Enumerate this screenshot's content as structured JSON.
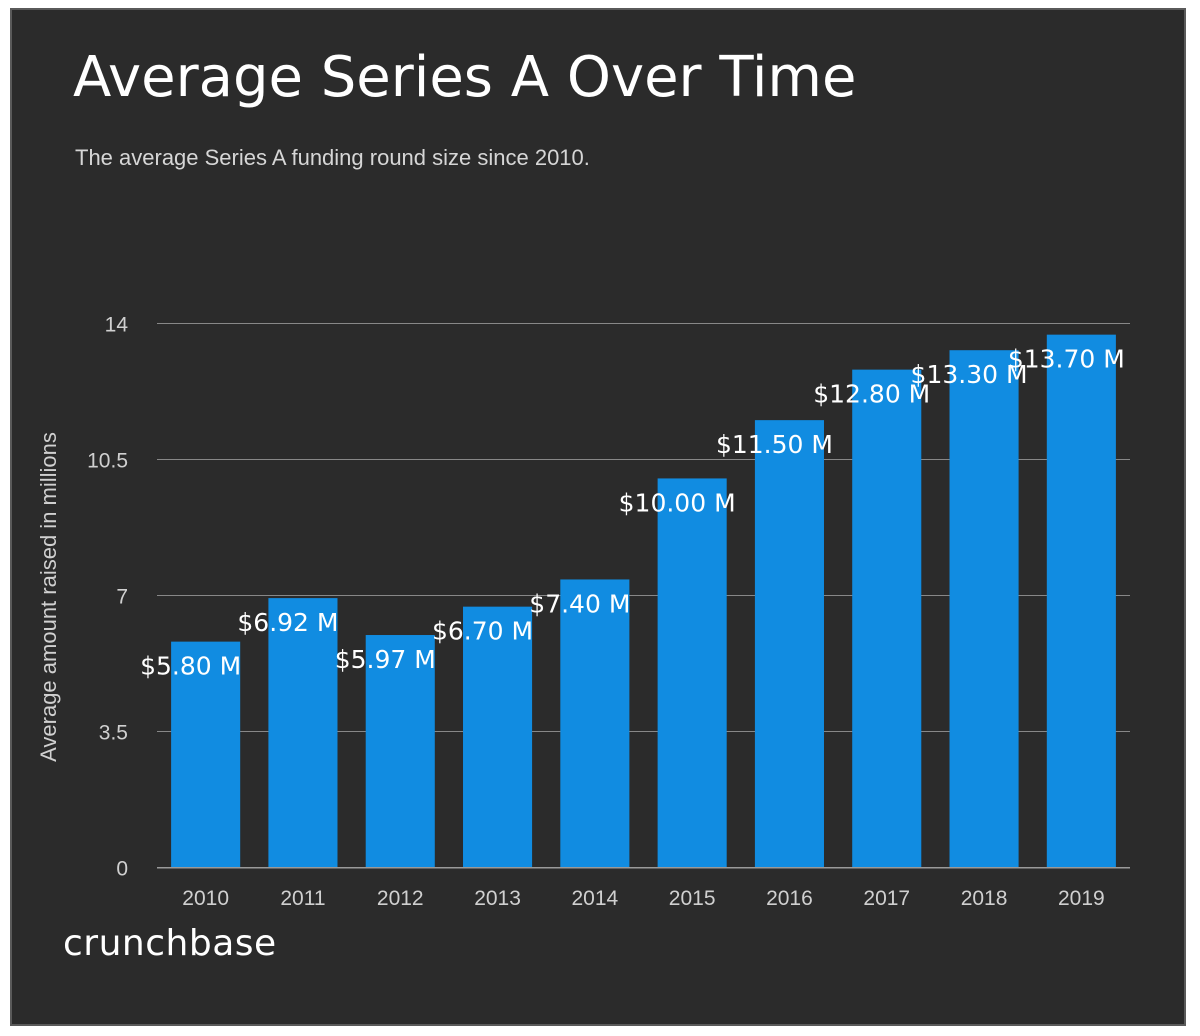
{
  "header": {
    "title": "Average Series A Over Time",
    "subtitle": "The average Series A funding round size since 2010."
  },
  "brand": {
    "name": "crunchbase"
  },
  "colors": {
    "background": "#2b2b2b",
    "bar": "#118ce1",
    "text": "#ffffff",
    "muted_text": "#d0d0d0",
    "gridline": "#888888"
  },
  "chart_data": {
    "type": "bar",
    "title": "Average Series A Over Time",
    "subtitle": "The average Series A funding round size since 2010.",
    "xlabel": "",
    "ylabel": "Average  amount raised in millions",
    "categories": [
      "2010",
      "2011",
      "2012",
      "2013",
      "2014",
      "2015",
      "2016",
      "2017",
      "2018",
      "2019"
    ],
    "values": [
      5.8,
      6.92,
      5.97,
      6.7,
      7.4,
      10.0,
      11.5,
      12.8,
      13.3,
      13.7
    ],
    "data_labels": [
      "$5.80 M",
      "$6.92 M",
      "$5.97 M",
      "$6.70 M",
      "$7.40 M",
      "$10.00 M",
      "$11.50 M",
      "$12.80 M",
      "$13.30 M",
      "$13.70 M"
    ],
    "ylim": [
      0,
      14
    ],
    "yticks": [
      0,
      3.5,
      7,
      10.5,
      14
    ],
    "ytick_labels": [
      "0",
      "3.5",
      "7",
      "10.5",
      "14"
    ],
    "grid": true,
    "legend": "none"
  }
}
